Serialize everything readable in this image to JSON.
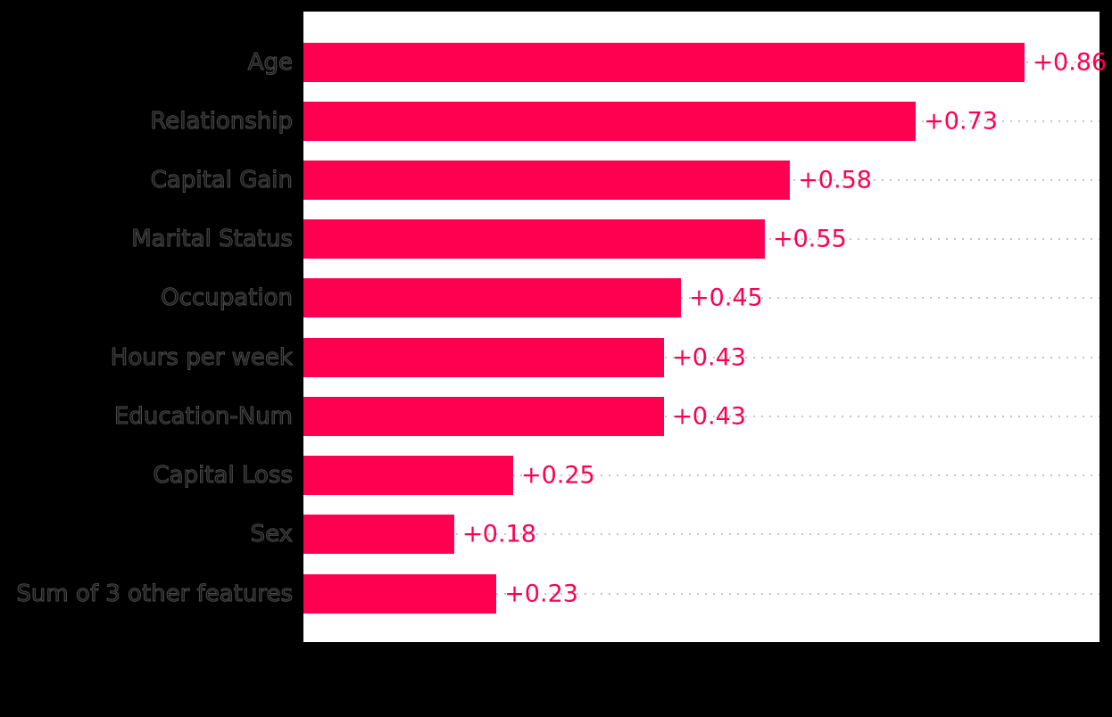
{
  "figure": {
    "background_color": "#000000",
    "plot_background_color": "#ffffff"
  },
  "chart_data": {
    "type": "bar",
    "orientation": "horizontal",
    "categories": [
      "Age",
      "Relationship",
      "Capital Gain",
      "Marital Status",
      "Occupation",
      "Hours per week",
      "Education-Num",
      "Capital Loss",
      "Sex",
      "Sum of 3 other features"
    ],
    "values": [
      0.86,
      0.73,
      0.58,
      0.55,
      0.45,
      0.43,
      0.43,
      0.25,
      0.18,
      0.23
    ],
    "value_labels": [
      "+0.86",
      "+0.73",
      "+0.58",
      "+0.55",
      "+0.45",
      "+0.43",
      "+0.43",
      "+0.25",
      "+0.18",
      "+0.23"
    ],
    "xlabel": "",
    "ylabel": "",
    "xlim": [
      0,
      0.95
    ],
    "grid": "horizontal-dotted",
    "legend_position": "none",
    "bar_color": "#ff0051",
    "value_label_color": "#ff0051",
    "tick_label_color": "#4d4d4d",
    "gridline_color": "#c4c4c4"
  }
}
